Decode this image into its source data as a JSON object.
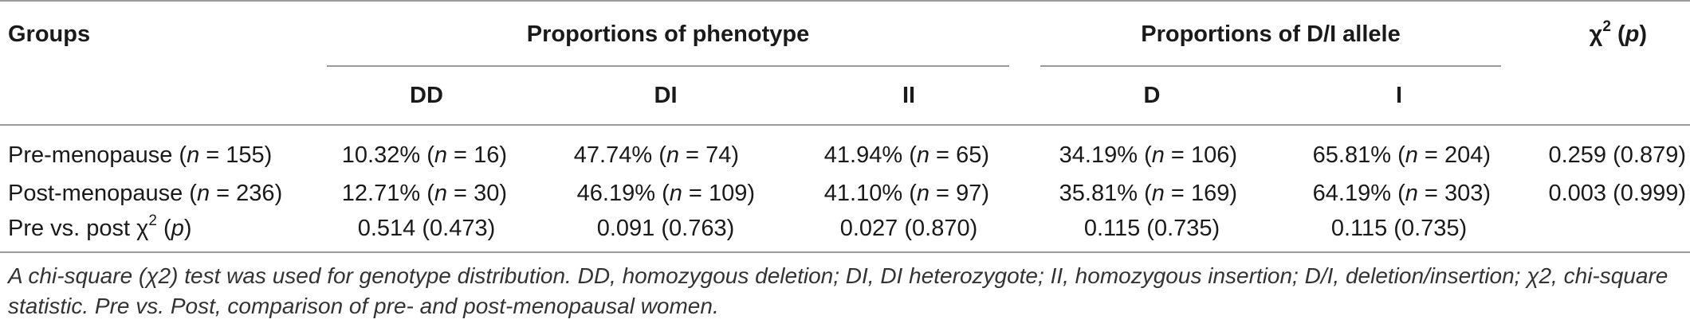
{
  "headers": {
    "groups": "Groups",
    "phenotype": "Proportions of phenotype",
    "allele": "Proportions of D/I allele",
    "chi_symbol": "χ",
    "chi_sup": "2",
    "chi_p": "p",
    "dd": "DD",
    "di": "DI",
    "ii": "II",
    "d": "D",
    "i": "I"
  },
  "rows": [
    {
      "label": "Pre-menopause",
      "label_n": "155",
      "dd": "10.32%",
      "dd_n": "16",
      "di": "47.74%",
      "di_n": "74",
      "ii": "41.94%",
      "ii_n": "65",
      "d": "34.19%",
      "d_n": "106",
      "i": "65.81%",
      "i_n": "204",
      "chi": "0.259 (0.879)"
    },
    {
      "label": "Post-menopause",
      "label_n": "236",
      "dd": "12.71%",
      "dd_n": "30",
      "di": "46.19%",
      "di_n": "109",
      "ii": "41.10%",
      "ii_n": "97",
      "d": "35.81%",
      "d_n": "169",
      "i": "64.19%",
      "i_n": "303",
      "chi": "0.003 (0.999)"
    }
  ],
  "compare_row": {
    "label_prefix": "Pre vs. post χ",
    "label_sup": "2",
    "label_p": "p",
    "dd": "0.514 (0.473)",
    "di": "0.091 (0.763)",
    "ii": "0.027 (0.870)",
    "d": "0.115 (0.735)",
    "i": "0.115 (0.735)"
  },
  "footnote": {
    "line1": "A chi-square (χ2) test was used for genotype distribution. DD, homozygous deletion; DI, DI heterozygote; II, homozygous insertion; D/I, deletion/insertion; χ2, chi-square",
    "line2": "statistic. Pre vs. Post, comparison of pre- and post-menopausal women."
  }
}
